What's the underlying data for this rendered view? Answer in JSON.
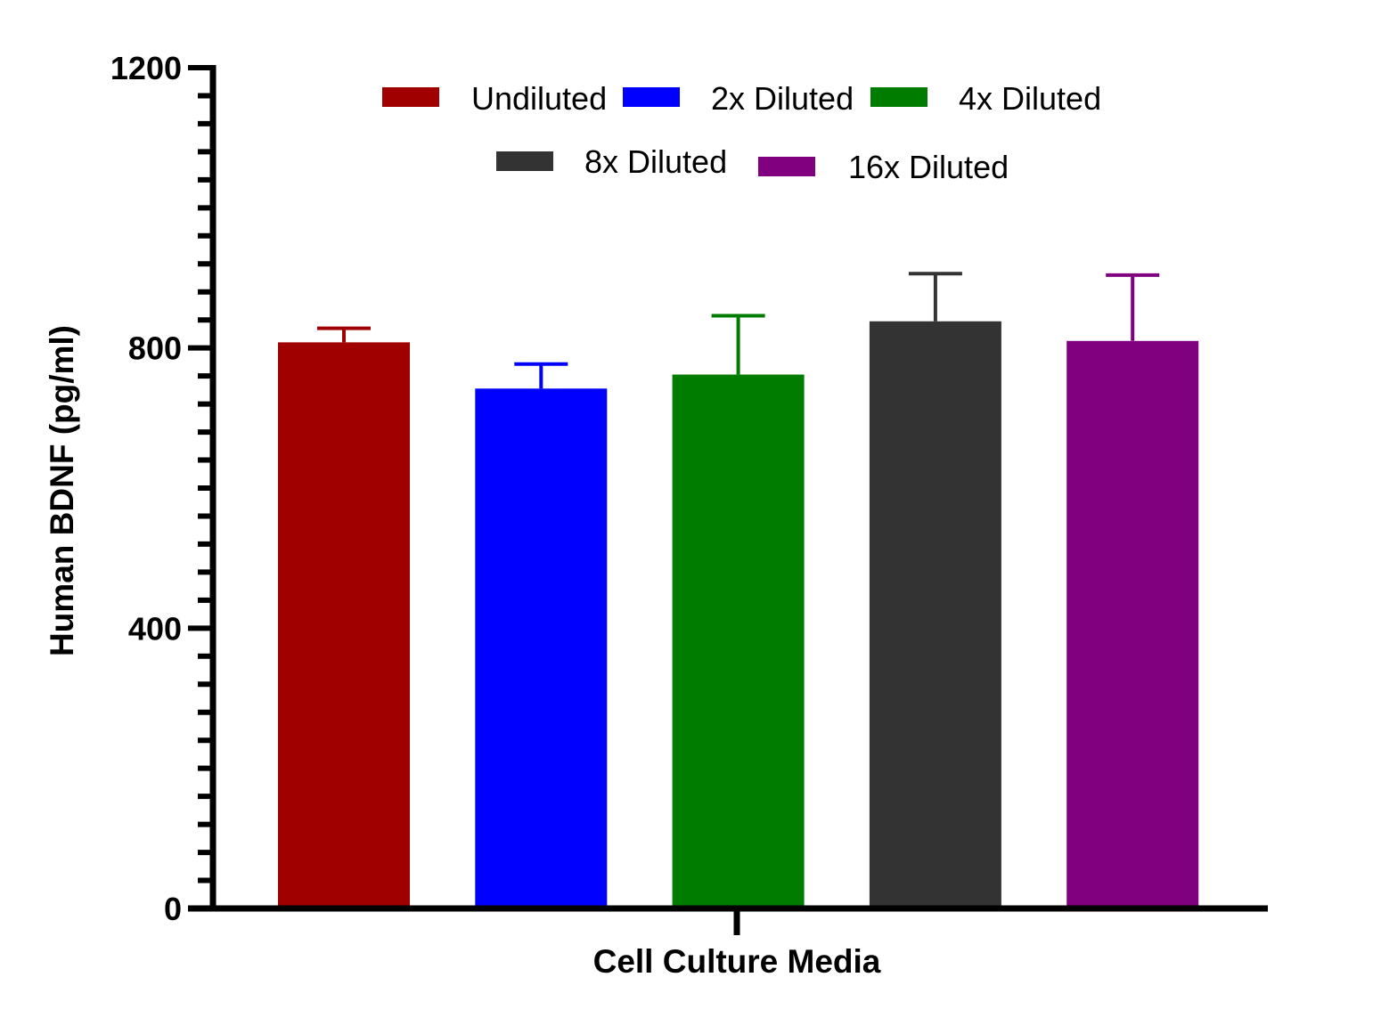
{
  "chart_data": {
    "type": "bar",
    "title": "",
    "xlabel": "Cell Culture Media",
    "ylabel": "Human BDNF (pg/ml)",
    "ylim": [
      0,
      1200
    ],
    "yticks": [
      "0",
      "400",
      "800",
      "1200"
    ],
    "grid": false,
    "legend_position": "top",
    "series": [
      {
        "name": "Undiluted",
        "value": 808,
        "error": 20,
        "color": "#a00000"
      },
      {
        "name": "2x Diluted",
        "value": 742,
        "error": 35,
        "color": "#0000ff"
      },
      {
        "name": "4x Diluted",
        "value": 762,
        "error": 84,
        "color": "#007d00"
      },
      {
        "name": "8x Diluted",
        "value": 838,
        "error": 68,
        "color": "#333333"
      },
      {
        "name": "16x Diluted",
        "value": 810,
        "error": 94,
        "color": "#800080"
      }
    ]
  }
}
